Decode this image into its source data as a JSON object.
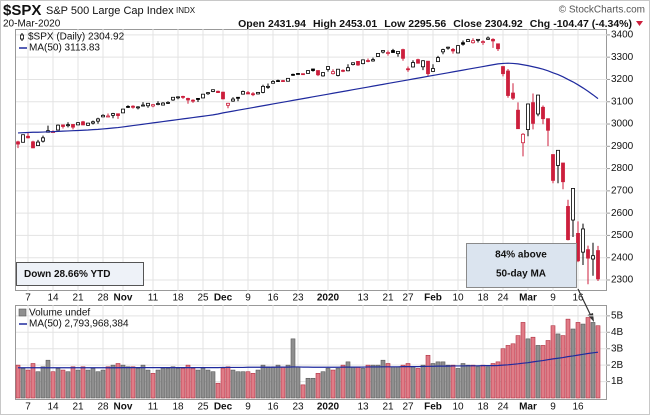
{
  "header": {
    "title": "$SPX",
    "subtitle": "S&P 500 Large Cap Index",
    "exchange": "INDX",
    "date": "20-Mar-2020",
    "credit": "© StockCharts.com",
    "stats": [
      {
        "label": "Open",
        "value": "2431.94"
      },
      {
        "label": "High",
        "value": "2453.01"
      },
      {
        "label": "Low",
        "value": "2295.56"
      },
      {
        "label": "Close",
        "value": "2304.92"
      },
      {
        "label": "Chg",
        "value": "-104.47 (-4.34%)"
      }
    ]
  },
  "chart_data": [
    {
      "type": "candlestick",
      "name": "$SPX (Daily) 2304.92",
      "color_up": "#000000",
      "color_down": "#cc1f3c",
      "categories": [
        null,
        null,
        "7",
        null,
        null,
        null,
        null,
        "14",
        null,
        null,
        null,
        null,
        "21",
        null,
        null,
        null,
        null,
        "28",
        null,
        null,
        null,
        "Nov",
        null,
        null,
        null,
        null,
        null,
        "11",
        null,
        null,
        null,
        null,
        "18",
        null,
        null,
        null,
        null,
        "25",
        null,
        null,
        null,
        "Dec",
        null,
        null,
        null,
        null,
        "9",
        null,
        null,
        null,
        null,
        "16",
        null,
        null,
        null,
        null,
        "23",
        null,
        null,
        null,
        null,
        null,
        "2020",
        null,
        null,
        null,
        null,
        null,
        null,
        "13",
        null,
        null,
        null,
        null,
        "21",
        null,
        null,
        null,
        "27",
        null,
        null,
        null,
        null,
        "Feb",
        null,
        null,
        null,
        null,
        "10",
        null,
        null,
        null,
        null,
        "18",
        null,
        null,
        null,
        "24",
        null,
        null,
        null,
        null,
        "Mar",
        null,
        null,
        null,
        null,
        "9",
        null,
        null,
        null,
        null,
        "16",
        null,
        null,
        null,
        null
      ],
      "open": [
        2920,
        2918,
        2945,
        2920,
        2903,
        2923,
        2963,
        2966,
        2973,
        2996,
        2996,
        2998,
        2996,
        3010,
        2994,
        3004,
        3013,
        3032,
        3035,
        3039,
        3046,
        3050,
        3079,
        3080,
        3076,
        3081,
        3082,
        3081,
        3090,
        3085,
        3097,
        3108,
        3118,
        3124,
        3115,
        3107,
        3115,
        3117,
        3136,
        3146,
        3147,
        3143,
        3084,
        3103,
        3120,
        3134,
        3141,
        3136,
        3135,
        3142,
        3167,
        3183,
        3195,
        3195,
        3192,
        3223,
        3227,
        3226,
        3227,
        3247,
        3240,
        3216,
        3245,
        3226,
        3218,
        3241,
        3239,
        3267,
        3281,
        3271,
        3285,
        3283,
        3303,
        3323,
        3321,
        3330,
        3316,
        3334,
        3248,
        3256,
        3289,
        3257,
        3282,
        3236,
        3280,
        3324,
        3344,
        3335,
        3319,
        3365,
        3370,
        3365,
        3378,
        3370,
        3380,
        3380,
        3360,
        3258,
        3238,
        3139,
        3062,
        2916,
        2975,
        3096,
        3045,
        3075,
        3024,
        2863,
        2814,
        2825,
        2630,
        2569,
        2509,
        2425,
        2436,
        2394,
        2431.94
      ],
      "high": [
        2925,
        2953,
        2959,
        2925,
        2929,
        2948,
        2993,
        2972,
        2998,
        2998,
        3008,
        2998,
        3008,
        3014,
        3005,
        3015,
        3028,
        3044,
        3047,
        3050,
        3046,
        3067,
        3084,
        3084,
        3080,
        3098,
        3094,
        3088,
        3102,
        3098,
        3102,
        3120,
        3124,
        3127,
        3118,
        3111,
        3116,
        3134,
        3142,
        3154,
        3150,
        3145,
        3095,
        3120,
        3121,
        3150,
        3148,
        3143,
        3143,
        3176,
        3182,
        3197,
        3199,
        3198,
        3206,
        3226,
        3227,
        3226,
        3240,
        3248,
        3241,
        3232,
        3258,
        3246,
        3246,
        3245,
        3268,
        3275,
        3283,
        3288,
        3294,
        3298,
        3317,
        3330,
        3330,
        3337,
        3326,
        3338,
        3258,
        3286,
        3293,
        3286,
        3282,
        3268,
        3306,
        3338,
        3347,
        3341,
        3352,
        3375,
        3382,
        3385,
        3381,
        3376,
        3393,
        3385,
        3360,
        3259,
        3247,
        3183,
        3097,
        2959,
        3090,
        3137,
        3130,
        3083,
        3024,
        2863,
        2882,
        2825,
        2660,
        2711,
        2563,
        2553,
        2454,
        2467,
        2453.01
      ],
      "low": [
        2892,
        2918,
        2935,
        2892,
        2902,
        2917,
        2963,
        2962,
        2973,
        2980,
        2985,
        2976,
        2996,
        2995,
        2992,
        2998,
        3001,
        3032,
        3033,
        3026,
        3023,
        3050,
        3072,
        3069,
        3066,
        3080,
        3073,
        3075,
        3084,
        3083,
        3090,
        3104,
        3111,
        3113,
        3091,
        3095,
        3099,
        3117,
        3131,
        3143,
        3139,
        3110,
        3071,
        3100,
        3102,
        3134,
        3135,
        3125,
        3133,
        3138,
        3158,
        3183,
        3191,
        3191,
        3192,
        3216,
        3222,
        3220,
        3227,
        3235,
        3215,
        3213,
        3235,
        3222,
        3214,
        3233,
        3237,
        3263,
        3261,
        3268,
        3277,
        3280,
        3302,
        3317,
        3307,
        3320,
        3302,
        3284,
        3234,
        3254,
        3271,
        3242,
        3214,
        3236,
        3280,
        3313,
        3334,
        3316,
        3317,
        3352,
        3369,
        3361,
        3366,
        3355,
        3378,
        3342,
        3328,
        3214,
        3118,
        3108,
        2978,
        2855,
        2945,
        2976,
        3035,
        2999,
        2901,
        2734,
        2734,
        2707,
        2478,
        2493,
        2380,
        2367,
        2281,
        2319,
        2295.56
      ],
      "close": [
        2910,
        2952,
        2938,
        2893,
        2919,
        2938,
        2970,
        2966,
        2995,
        2989,
        2997,
        2986,
        3006,
        2996,
        3004,
        3010,
        3023,
        3039,
        3036,
        3047,
        3038,
        3067,
        3078,
        3075,
        3077,
        3085,
        3093,
        3087,
        3092,
        3094,
        3097,
        3120,
        3122,
        3120,
        3108,
        3104,
        3110,
        3134,
        3141,
        3154,
        3141,
        3113,
        3093,
        3112,
        3117,
        3146,
        3135,
        3133,
        3142,
        3169,
        3169,
        3191,
        3192,
        3191,
        3205,
        3221,
        3224,
        3223,
        3240,
        3240,
        3221,
        3231,
        3258,
        3235,
        3246,
        3237,
        3253,
        3275,
        3265,
        3288,
        3283,
        3289,
        3317,
        3330,
        3321,
        3321,
        3326,
        3295,
        3244,
        3276,
        3273,
        3284,
        3226,
        3249,
        3298,
        3334,
        3345,
        3328,
        3352,
        3358,
        3379,
        3374,
        3380,
        3370,
        3386,
        3373,
        3338,
        3226,
        3128,
        3116,
        2979,
        2954,
        3090,
        3003,
        3130,
        3024,
        2972,
        2747,
        2882,
        2741,
        2481,
        2711,
        2386,
        2529,
        2398,
        2409,
        2304.92
      ],
      "series": [
        {
          "name": "MA(50) 3113.83",
          "color": "#1f2a9e",
          "values": [
            2960,
            2961,
            2962,
            2963,
            2963,
            2964,
            2965,
            2966,
            2967,
            2968,
            2969,
            2970,
            2971,
            2972,
            2973,
            2975,
            2976,
            2978,
            2980,
            2982,
            2984,
            2987,
            2990,
            2993,
            2996,
            2999,
            3002,
            3005,
            3008,
            3011,
            3014,
            3017,
            3020,
            3023,
            3026,
            3029,
            3032,
            3035,
            3038,
            3041,
            3045,
            3050,
            3054,
            3058,
            3062,
            3066,
            3070,
            3074,
            3078,
            3082,
            3086,
            3090,
            3094,
            3098,
            3102,
            3106,
            3110,
            3114,
            3118,
            3122,
            3126,
            3130,
            3134,
            3138,
            3142,
            3146,
            3150,
            3154,
            3158,
            3162,
            3166,
            3170,
            3174,
            3178,
            3182,
            3186,
            3190,
            3194,
            3198,
            3202,
            3206,
            3210,
            3214,
            3218,
            3222,
            3226,
            3230,
            3234,
            3238,
            3242,
            3246,
            3250,
            3254,
            3258,
            3262,
            3266,
            3270,
            3272,
            3273,
            3272,
            3270,
            3266,
            3262,
            3257,
            3252,
            3246,
            3239,
            3230,
            3222,
            3212,
            3200,
            3189,
            3176,
            3162,
            3147,
            3131,
            3113.83
          ]
        }
      ],
      "ylim": [
        2255,
        3422
      ],
      "yticks": [
        2300,
        2400,
        2500,
        2600,
        2700,
        2800,
        2900,
        3000,
        3100,
        3200,
        3300,
        3400
      ],
      "grid": true,
      "annotations": [
        {
          "text": "Down 28.66% YTD"
        },
        {
          "lines": [
            "84% above",
            "50-day MA"
          ]
        }
      ]
    },
    {
      "type": "bar",
      "name": "Volume undef",
      "color": "#8f8f8f",
      "color_down": "#e07c87",
      "values": [
        2.0,
        1.8,
        1.7,
        2.1,
        1.6,
        1.9,
        2.3,
        1.6,
        1.8,
        1.7,
        1.6,
        1.9,
        1.7,
        1.9,
        1.7,
        1.8,
        1.6,
        1.7,
        1.9,
        2.0,
        2.1,
        2.0,
        1.9,
        1.9,
        1.8,
        2.0,
        1.7,
        1.5,
        1.7,
        1.8,
        1.8,
        1.9,
        1.8,
        1.8,
        2.0,
        1.8,
        1.7,
        1.8,
        1.7,
        1.6,
        0.9,
        1.8,
        1.9,
        1.7,
        1.6,
        1.6,
        1.6,
        1.5,
        1.7,
        2.0,
        1.9,
        1.9,
        2.0,
        1.9,
        2.0,
        3.6,
        1.9,
        0.8,
        1.2,
        1.2,
        1.5,
        1.6,
        1.8,
        1.7,
        1.8,
        2.0,
        2.2,
        1.9,
        1.9,
        1.8,
        2.0,
        2.0,
        2.0,
        2.3,
        2.1,
        1.9,
        1.9,
        2.0,
        2.1,
        1.9,
        1.8,
        2.0,
        2.6,
        2.1,
        2.2,
        2.2,
        2.0,
        2.0,
        1.8,
        2.1,
        2.0,
        2.0,
        1.9,
        2.0,
        1.9,
        2.1,
        2.2,
        3.0,
        3.2,
        3.3,
        3.8,
        4.6,
        3.6,
        3.7,
        3.2,
        3.2,
        3.5,
        4.4,
        3.9,
        3.8,
        4.8,
        4.2,
        4.6,
        4.5,
        4.9,
        4.6,
        4.4
      ],
      "series": [
        {
          "name": "MA(50) 2,793,968,384",
          "color": "#1f2a9e",
          "values": [
            1.84,
            1.84,
            1.84,
            1.84,
            1.84,
            1.84,
            1.84,
            1.84,
            1.84,
            1.84,
            1.84,
            1.84,
            1.84,
            1.84,
            1.84,
            1.84,
            1.84,
            1.84,
            1.84,
            1.84,
            1.84,
            1.85,
            1.85,
            1.85,
            1.85,
            1.85,
            1.85,
            1.85,
            1.85,
            1.85,
            1.85,
            1.85,
            1.85,
            1.85,
            1.85,
            1.85,
            1.85,
            1.85,
            1.85,
            1.85,
            1.85,
            1.86,
            1.86,
            1.86,
            1.86,
            1.86,
            1.87,
            1.87,
            1.87,
            1.87,
            1.87,
            1.87,
            1.88,
            1.88,
            1.88,
            1.89,
            1.89,
            1.88,
            1.88,
            1.87,
            1.87,
            1.87,
            1.87,
            1.87,
            1.87,
            1.88,
            1.88,
            1.88,
            1.88,
            1.88,
            1.89,
            1.89,
            1.89,
            1.9,
            1.9,
            1.9,
            1.9,
            1.91,
            1.91,
            1.91,
            1.91,
            1.92,
            1.93,
            1.93,
            1.94,
            1.94,
            1.94,
            1.95,
            1.95,
            1.95,
            1.96,
            1.96,
            1.96,
            1.97,
            1.97,
            1.97,
            1.98,
            2.0,
            2.02,
            2.05,
            2.08,
            2.12,
            2.15,
            2.2,
            2.24,
            2.28,
            2.33,
            2.38,
            2.42,
            2.46,
            2.52,
            2.56,
            2.61,
            2.66,
            2.71,
            2.75,
            2.79
          ]
        }
      ],
      "ylim": [
        0,
        5.6
      ],
      "yticks": [
        {
          "value": 1,
          "label": "1B"
        },
        {
          "value": 2,
          "label": "2B"
        },
        {
          "value": 3,
          "label": "3B"
        },
        {
          "value": 4,
          "label": "4B"
        },
        {
          "value": 5,
          "label": "5B"
        }
      ],
      "grid": true
    }
  ]
}
